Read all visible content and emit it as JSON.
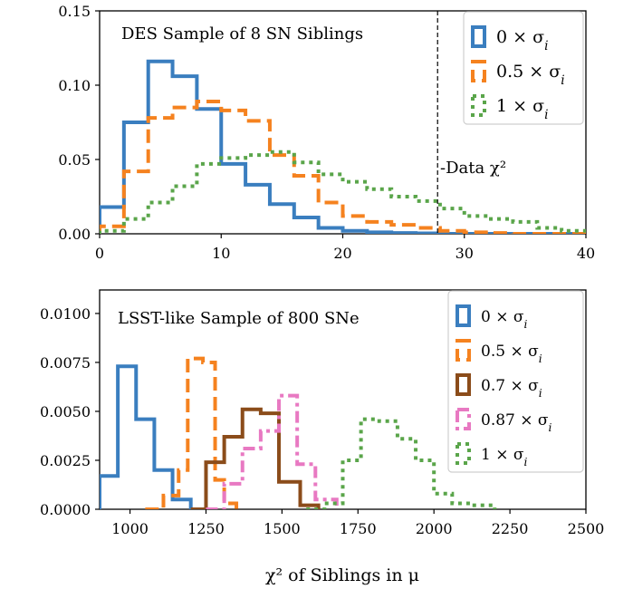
{
  "chart_data": [
    {
      "type": "step-histogram",
      "title": "DES Sample of 8 SN Siblings",
      "xlabel": "",
      "ylabel": "",
      "xlim": [
        0,
        40
      ],
      "ylim": [
        0,
        0.15
      ],
      "xticks": [
        0,
        10,
        20,
        30,
        40
      ],
      "xtick_labels": [
        "0",
        "10",
        "20",
        "30",
        "40"
      ],
      "yticks": [
        0,
        0.05,
        0.1,
        0.15
      ],
      "ytick_labels": [
        "0.00",
        "0.05",
        "0.10",
        "0.15"
      ],
      "legend_position": "upper right",
      "annotation": {
        "text": "-Data χ²",
        "x": 27.8
      },
      "series": [
        {
          "name": "0 × σ_i",
          "legend_label": "0 × σi",
          "color": "#3a7ebf",
          "dash": "solid",
          "edges": [
            0,
            2,
            4,
            6,
            8,
            10,
            12,
            14,
            16,
            18,
            20,
            22,
            24,
            26,
            28,
            30,
            32,
            34,
            36,
            38,
            40
          ],
          "values": [
            0.018,
            0.075,
            0.116,
            0.106,
            0.084,
            0.047,
            0.033,
            0.02,
            0.011,
            0.004,
            0.002,
            0.001,
            0.0005,
            0.0003,
            0,
            0,
            0,
            0,
            0,
            0
          ]
        },
        {
          "name": "0.5 × σ_i",
          "legend_label": "0.5 × σi",
          "color": "#f5821f",
          "dash": "dashed",
          "edges": [
            0,
            2,
            4,
            6,
            8,
            10,
            12,
            14,
            16,
            18,
            20,
            22,
            24,
            26,
            28,
            30,
            32,
            34,
            36,
            38,
            40
          ],
          "values": [
            0.005,
            0.042,
            0.078,
            0.085,
            0.089,
            0.083,
            0.076,
            0.053,
            0.039,
            0.021,
            0.012,
            0.008,
            0.006,
            0.004,
            0.002,
            0.001,
            0.0005,
            0,
            0,
            0
          ]
        },
        {
          "name": "1 × σ_i",
          "legend_label": "1 × σi",
          "color": "#5aa54a",
          "dash": "dotted",
          "edges": [
            0,
            2,
            4,
            6,
            8,
            10,
            12,
            14,
            16,
            18,
            20,
            22,
            24,
            26,
            28,
            30,
            32,
            34,
            36,
            38,
            40
          ],
          "values": [
            0.002,
            0.01,
            0.021,
            0.032,
            0.047,
            0.051,
            0.053,
            0.055,
            0.048,
            0.04,
            0.035,
            0.03,
            0.025,
            0.022,
            0.017,
            0.012,
            0.01,
            0.008,
            0.004,
            0.002
          ]
        }
      ]
    },
    {
      "type": "step-histogram",
      "title": "LSST-like Sample of 800 SNe",
      "xlabel": "χ² of Siblings in μ",
      "ylabel": "",
      "xlim": [
        900,
        2500
      ],
      "ylim": [
        0,
        0.0112
      ],
      "xticks": [
        1000,
        1250,
        1500,
        1750,
        2000,
        2250,
        2500
      ],
      "xtick_labels": [
        "1000",
        "1250",
        "1500",
        "1750",
        "2000",
        "2250",
        "2500"
      ],
      "yticks": [
        0,
        0.0025,
        0.005,
        0.0075,
        0.01
      ],
      "ytick_labels": [
        "0.0000",
        "0.0025",
        "0.0050",
        "0.0075",
        "0.0100"
      ],
      "legend_position": "upper right",
      "series": [
        {
          "name": "0 × σ_i",
          "legend_label": "0 × σi",
          "color": "#3a7ebf",
          "dash": "solid",
          "edges": [
            840,
            900,
            960,
            1020,
            1080,
            1140,
            1200
          ],
          "values": [
            0,
            0.0017,
            0.0073,
            0.0046,
            0.002,
            0.0005
          ]
        },
        {
          "name": "0.5 × σ_i",
          "legend_label": "0.5 × σi",
          "color": "#f5821f",
          "dash": "dashed",
          "edges": [
            1050,
            1110,
            1160,
            1190,
            1240,
            1280,
            1310,
            1350
          ],
          "values": [
            0,
            0.0007,
            0.002,
            0.0077,
            0.0075,
            0.0015,
            0.0003
          ]
        },
        {
          "name": "0.7 × σ_i",
          "legend_label": "0.7 × σi",
          "color": "#8b4c1a",
          "dash": "solid",
          "edges": [
            1200,
            1250,
            1310,
            1370,
            1430,
            1490,
            1560,
            1620
          ],
          "values": [
            0,
            0.0024,
            0.0037,
            0.0051,
            0.0049,
            0.0014,
            0.0002
          ]
        },
        {
          "name": "0.87 × σ_i",
          "legend_label": "0.87 × σi",
          "color": "#e879c2",
          "dash": "dashdot",
          "edges": [
            1250,
            1310,
            1370,
            1430,
            1490,
            1550,
            1610,
            1680
          ],
          "values": [
            0,
            0.0013,
            0.0031,
            0.004,
            0.0058,
            0.0023,
            0.0005
          ]
        },
        {
          "name": "1 × σ_i",
          "legend_label": "1 × σi",
          "color": "#5aa54a",
          "dash": "dotted",
          "edges": [
            1580,
            1640,
            1700,
            1760,
            1820,
            1880,
            1940,
            2000,
            2060,
            2120,
            2200
          ],
          "values": [
            0,
            0.0003,
            0.0025,
            0.0046,
            0.0045,
            0.0036,
            0.0025,
            0.0008,
            0.0003,
            0.0002
          ]
        }
      ]
    }
  ]
}
